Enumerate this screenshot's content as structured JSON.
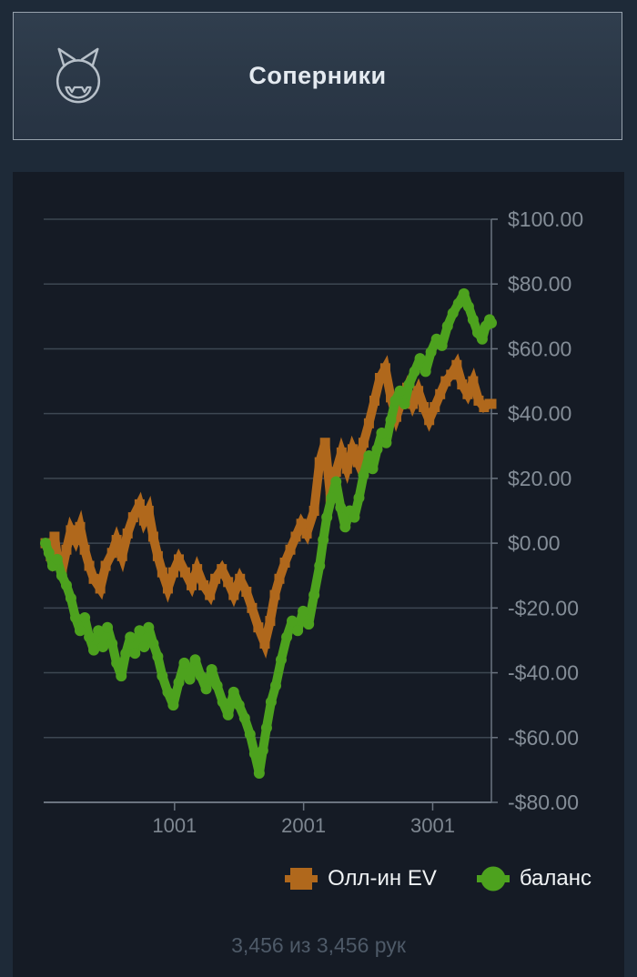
{
  "header": {
    "title": "Соперники",
    "icon": "imp-face-icon"
  },
  "footer": {
    "hands_summary": "3,456 из 3,456 рук"
  },
  "chart_data": {
    "type": "scatter",
    "title": "",
    "xlabel": "",
    "ylabel": "",
    "grid": true,
    "legend_position": "bottom",
    "x_axis": {
      "min": 1,
      "max": 3456,
      "ticks": [
        {
          "v": 1001,
          "label": "1001"
        },
        {
          "v": 2001,
          "label": "2001"
        },
        {
          "v": 3001,
          "label": "3001"
        }
      ]
    },
    "y_axis": {
      "min": -80,
      "max": 100,
      "ticks": [
        {
          "v": 100,
          "label": "$100.00"
        },
        {
          "v": 80,
          "label": "$80.00"
        },
        {
          "v": 60,
          "label": "$60.00"
        },
        {
          "v": 40,
          "label": "$40.00"
        },
        {
          "v": 20,
          "label": "$20.00"
        },
        {
          "v": 0,
          "label": "$0.00"
        },
        {
          "v": -20,
          "label": "-$20.00"
        },
        {
          "v": -40,
          "label": "-$40.00"
        },
        {
          "v": -60,
          "label": "-$60.00"
        },
        {
          "v": -80,
          "label": "-$80.00"
        }
      ]
    },
    "series": [
      {
        "name": "Олл-ин EV",
        "color": "#b0681c",
        "marker": "square",
        "points": [
          [
            1,
            0
          ],
          [
            42,
            -4
          ],
          [
            71,
            2
          ],
          [
            99,
            -6
          ],
          [
            127,
            -9
          ],
          [
            163,
            -2
          ],
          [
            198,
            4
          ],
          [
            234,
            1
          ],
          [
            269,
            5
          ],
          [
            305,
            -2
          ],
          [
            340,
            -7
          ],
          [
            375,
            -11
          ],
          [
            425,
            -14
          ],
          [
            467,
            -7
          ],
          [
            517,
            -3
          ],
          [
            552,
            1
          ],
          [
            595,
            -4
          ],
          [
            637,
            3
          ],
          [
            680,
            8
          ],
          [
            730,
            12
          ],
          [
            765,
            7
          ],
          [
            800,
            10
          ],
          [
            836,
            2
          ],
          [
            871,
            -4
          ],
          [
            906,
            -9
          ],
          [
            949,
            -14
          ],
          [
            991,
            -9
          ],
          [
            1034,
            -5
          ],
          [
            1083,
            -9
          ],
          [
            1133,
            -13
          ],
          [
            1176,
            -8
          ],
          [
            1225,
            -13
          ],
          [
            1275,
            -16
          ],
          [
            1317,
            -11
          ],
          [
            1367,
            -8
          ],
          [
            1416,
            -12
          ],
          [
            1459,
            -16
          ],
          [
            1508,
            -11
          ],
          [
            1558,
            -15
          ],
          [
            1601,
            -20
          ],
          [
            1650,
            -26
          ],
          [
            1700,
            -31
          ],
          [
            1742,
            -24
          ],
          [
            1778,
            -16
          ],
          [
            1813,
            -11
          ],
          [
            1856,
            -6
          ],
          [
            1898,
            -2
          ],
          [
            1940,
            2
          ],
          [
            1983,
            6
          ],
          [
            2025,
            3
          ],
          [
            2082,
            10
          ],
          [
            2125,
            25
          ],
          [
            2167,
            31
          ],
          [
            2210,
            14
          ],
          [
            2252,
            22
          ],
          [
            2295,
            28
          ],
          [
            2337,
            23
          ],
          [
            2380,
            29
          ],
          [
            2422,
            25
          ],
          [
            2465,
            31
          ],
          [
            2507,
            37
          ],
          [
            2550,
            44
          ],
          [
            2592,
            51
          ],
          [
            2634,
            54
          ],
          [
            2677,
            45
          ],
          [
            2719,
            39
          ],
          [
            2762,
            44
          ],
          [
            2804,
            48
          ],
          [
            2847,
            43
          ],
          [
            2889,
            47
          ],
          [
            2932,
            42
          ],
          [
            2974,
            38
          ],
          [
            3017,
            42
          ],
          [
            3059,
            46
          ],
          [
            3102,
            50
          ],
          [
            3144,
            52
          ],
          [
            3187,
            55
          ],
          [
            3229,
            49
          ],
          [
            3272,
            46
          ],
          [
            3314,
            50
          ],
          [
            3357,
            44
          ],
          [
            3399,
            42
          ],
          [
            3442,
            43
          ],
          [
            3456,
            43
          ]
        ]
      },
      {
        "name": "баланс",
        "color": "#4da21e",
        "marker": "circle",
        "points": [
          [
            1,
            0
          ],
          [
            28,
            -3
          ],
          [
            57,
            -7
          ],
          [
            92,
            -5
          ],
          [
            127,
            -10
          ],
          [
            163,
            -13
          ],
          [
            198,
            -17
          ],
          [
            234,
            -23
          ],
          [
            269,
            -27
          ],
          [
            305,
            -23
          ],
          [
            340,
            -29
          ],
          [
            375,
            -33
          ],
          [
            411,
            -27
          ],
          [
            446,
            -32
          ],
          [
            481,
            -26
          ],
          [
            517,
            -31
          ],
          [
            552,
            -37
          ],
          [
            588,
            -41
          ],
          [
            623,
            -34
          ],
          [
            658,
            -29
          ],
          [
            694,
            -34
          ],
          [
            730,
            -27
          ],
          [
            765,
            -32
          ],
          [
            800,
            -26
          ],
          [
            836,
            -31
          ],
          [
            871,
            -35
          ],
          [
            906,
            -41
          ],
          [
            949,
            -46
          ],
          [
            991,
            -50
          ],
          [
            1034,
            -43
          ],
          [
            1076,
            -37
          ],
          [
            1119,
            -42
          ],
          [
            1161,
            -36
          ],
          [
            1204,
            -41
          ],
          [
            1246,
            -45
          ],
          [
            1289,
            -39
          ],
          [
            1331,
            -44
          ],
          [
            1374,
            -49
          ],
          [
            1416,
            -53
          ],
          [
            1459,
            -46
          ],
          [
            1501,
            -50
          ],
          [
            1544,
            -54
          ],
          [
            1586,
            -59
          ],
          [
            1622,
            -65
          ],
          [
            1657,
            -71
          ],
          [
            1685,
            -64
          ],
          [
            1714,
            -57
          ],
          [
            1749,
            -49
          ],
          [
            1785,
            -44
          ],
          [
            1827,
            -36
          ],
          [
            1870,
            -29
          ],
          [
            1912,
            -24
          ],
          [
            1955,
            -27
          ],
          [
            1997,
            -21
          ],
          [
            2040,
            -25
          ],
          [
            2082,
            -16
          ],
          [
            2125,
            -7
          ],
          [
            2153,
            1
          ],
          [
            2181,
            8
          ],
          [
            2217,
            14
          ],
          [
            2252,
            19
          ],
          [
            2288,
            11
          ],
          [
            2323,
            5
          ],
          [
            2359,
            10
          ],
          [
            2394,
            8
          ],
          [
            2430,
            14
          ],
          [
            2465,
            21
          ],
          [
            2507,
            27
          ],
          [
            2536,
            23
          ],
          [
            2571,
            29
          ],
          [
            2606,
            34
          ],
          [
            2641,
            31
          ],
          [
            2677,
            38
          ],
          [
            2712,
            44
          ],
          [
            2748,
            47
          ],
          [
            2783,
            43
          ],
          [
            2818,
            49
          ],
          [
            2861,
            53
          ],
          [
            2903,
            57
          ],
          [
            2946,
            53
          ],
          [
            2988,
            59
          ],
          [
            3031,
            63
          ],
          [
            3073,
            61
          ],
          [
            3116,
            67
          ],
          [
            3158,
            71
          ],
          [
            3201,
            74
          ],
          [
            3243,
            77
          ],
          [
            3279,
            73
          ],
          [
            3314,
            69
          ],
          [
            3350,
            65
          ],
          [
            3385,
            63
          ],
          [
            3413,
            67
          ],
          [
            3442,
            69
          ],
          [
            3456,
            68
          ]
        ]
      }
    ]
  }
}
